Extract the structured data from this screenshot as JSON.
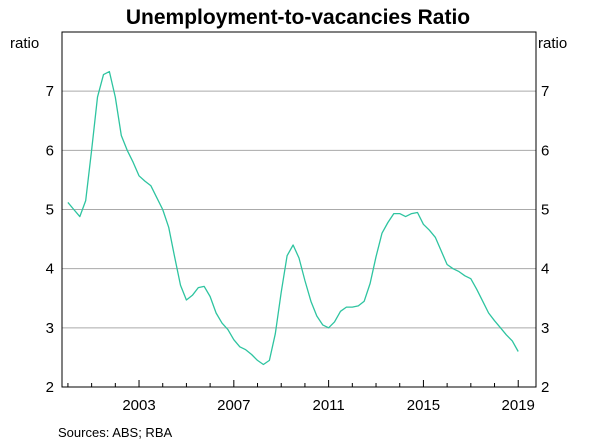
{
  "chart_data": {
    "type": "line",
    "title": "Unemployment-to-vacancies Ratio",
    "ylabel_left": "ratio",
    "ylabel_right": "ratio",
    "ylim": [
      2,
      8
    ],
    "yticks": [
      2,
      3,
      4,
      5,
      6,
      7
    ],
    "xlim": [
      1999.75,
      2019.75
    ],
    "xticks": [
      2003,
      2007,
      2011,
      2015,
      2019
    ],
    "grid": true,
    "source": "Sources:   ABS; RBA",
    "series": [
      {
        "color": "#2ec4a0",
        "x": [
          2000.0,
          2000.25,
          2000.5,
          2000.75,
          2001.0,
          2001.25,
          2001.5,
          2001.75,
          2002.0,
          2002.25,
          2002.5,
          2002.75,
          2003.0,
          2003.25,
          2003.5,
          2003.75,
          2004.0,
          2004.25,
          2004.5,
          2004.75,
          2005.0,
          2005.25,
          2005.5,
          2005.75,
          2006.0,
          2006.25,
          2006.5,
          2006.75,
          2007.0,
          2007.25,
          2007.5,
          2007.75,
          2008.0,
          2008.25,
          2008.5,
          2008.75,
          2009.0,
          2009.25,
          2009.5,
          2009.75,
          2010.0,
          2010.25,
          2010.5,
          2010.75,
          2011.0,
          2011.25,
          2011.5,
          2011.75,
          2012.0,
          2012.25,
          2012.5,
          2012.75,
          2013.0,
          2013.25,
          2013.5,
          2013.75,
          2014.0,
          2014.25,
          2014.5,
          2014.75,
          2015.0,
          2015.25,
          2015.5,
          2015.75,
          2016.0,
          2016.25,
          2016.5,
          2016.75,
          2017.0,
          2017.25,
          2017.5,
          2017.75,
          2018.0,
          2018.25,
          2018.5,
          2018.75,
          2019.0
        ],
        "values": [
          5.12,
          5.0,
          4.88,
          5.15,
          6.0,
          6.9,
          7.28,
          7.33,
          6.9,
          6.25,
          6.0,
          5.8,
          5.57,
          5.48,
          5.4,
          5.2,
          5.0,
          4.7,
          4.2,
          3.72,
          3.47,
          3.55,
          3.68,
          3.7,
          3.53,
          3.25,
          3.08,
          2.97,
          2.8,
          2.68,
          2.63,
          2.55,
          2.45,
          2.38,
          2.45,
          2.9,
          3.6,
          4.22,
          4.4,
          4.18,
          3.8,
          3.45,
          3.2,
          3.05,
          3.0,
          3.1,
          3.28,
          3.35,
          3.35,
          3.37,
          3.45,
          3.75,
          4.2,
          4.6,
          4.78,
          4.93,
          4.93,
          4.88,
          4.93,
          4.95,
          4.75,
          4.65,
          4.53,
          4.3,
          4.07,
          4.0,
          3.95,
          3.88,
          3.83,
          3.65,
          3.45,
          3.25,
          3.12,
          3.0,
          2.88,
          2.78,
          2.6
        ]
      }
    ]
  }
}
